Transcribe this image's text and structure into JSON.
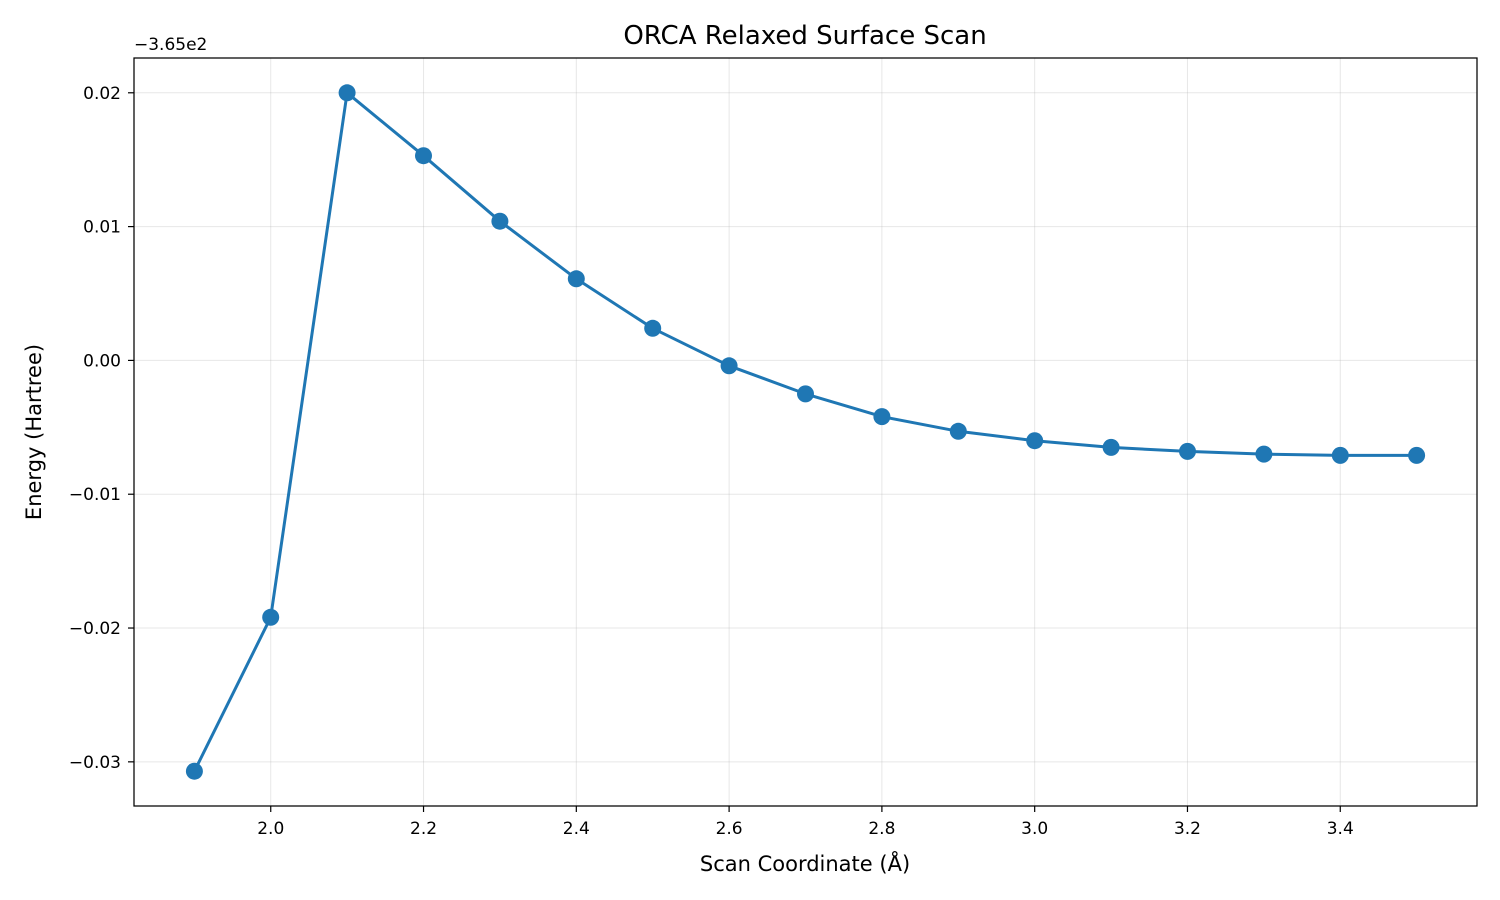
{
  "chart_data": {
    "type": "line",
    "title": "ORCA Relaxed Surface Scan",
    "xlabel": "Scan Coordinate (Å)",
    "ylabel": "Energy (Hartree)",
    "y_offset_label": "−3.65e2",
    "y_offset_value": -365,
    "xlim": [
      1.821,
      3.579
    ],
    "ylim": [
      -0.0333,
      0.0226
    ],
    "grid": true,
    "legend": "none",
    "line_color": "#1f77b4",
    "x_ticks": [
      2.0,
      2.2,
      2.4,
      2.6,
      2.8,
      3.0,
      3.2,
      3.4
    ],
    "x_tick_labels": [
      "2.0",
      "2.2",
      "2.4",
      "2.6",
      "2.8",
      "3.0",
      "3.2",
      "3.4"
    ],
    "y_ticks": [
      -0.03,
      -0.02,
      -0.01,
      0.0,
      0.01,
      0.02
    ],
    "y_tick_labels": [
      "−0.03",
      "−0.02",
      "−0.01",
      "0.00",
      "0.01",
      "0.02"
    ],
    "series": [
      {
        "x": [
          1.9,
          2.0,
          2.1,
          2.2,
          2.3,
          2.4,
          2.5,
          2.6,
          2.7,
          2.8,
          2.9,
          3.0,
          3.1,
          3.2,
          3.3,
          3.4,
          3.5
        ],
        "values": [
          -365.0307,
          -365.0192,
          -364.98,
          -364.9847,
          -364.9896,
          -364.9939,
          -364.9976,
          -365.0004,
          -365.0025,
          -365.0042,
          -365.0053,
          -365.006,
          -365.0065,
          -365.0068,
          -365.007,
          -365.0071,
          -365.0071
        ]
      }
    ]
  }
}
